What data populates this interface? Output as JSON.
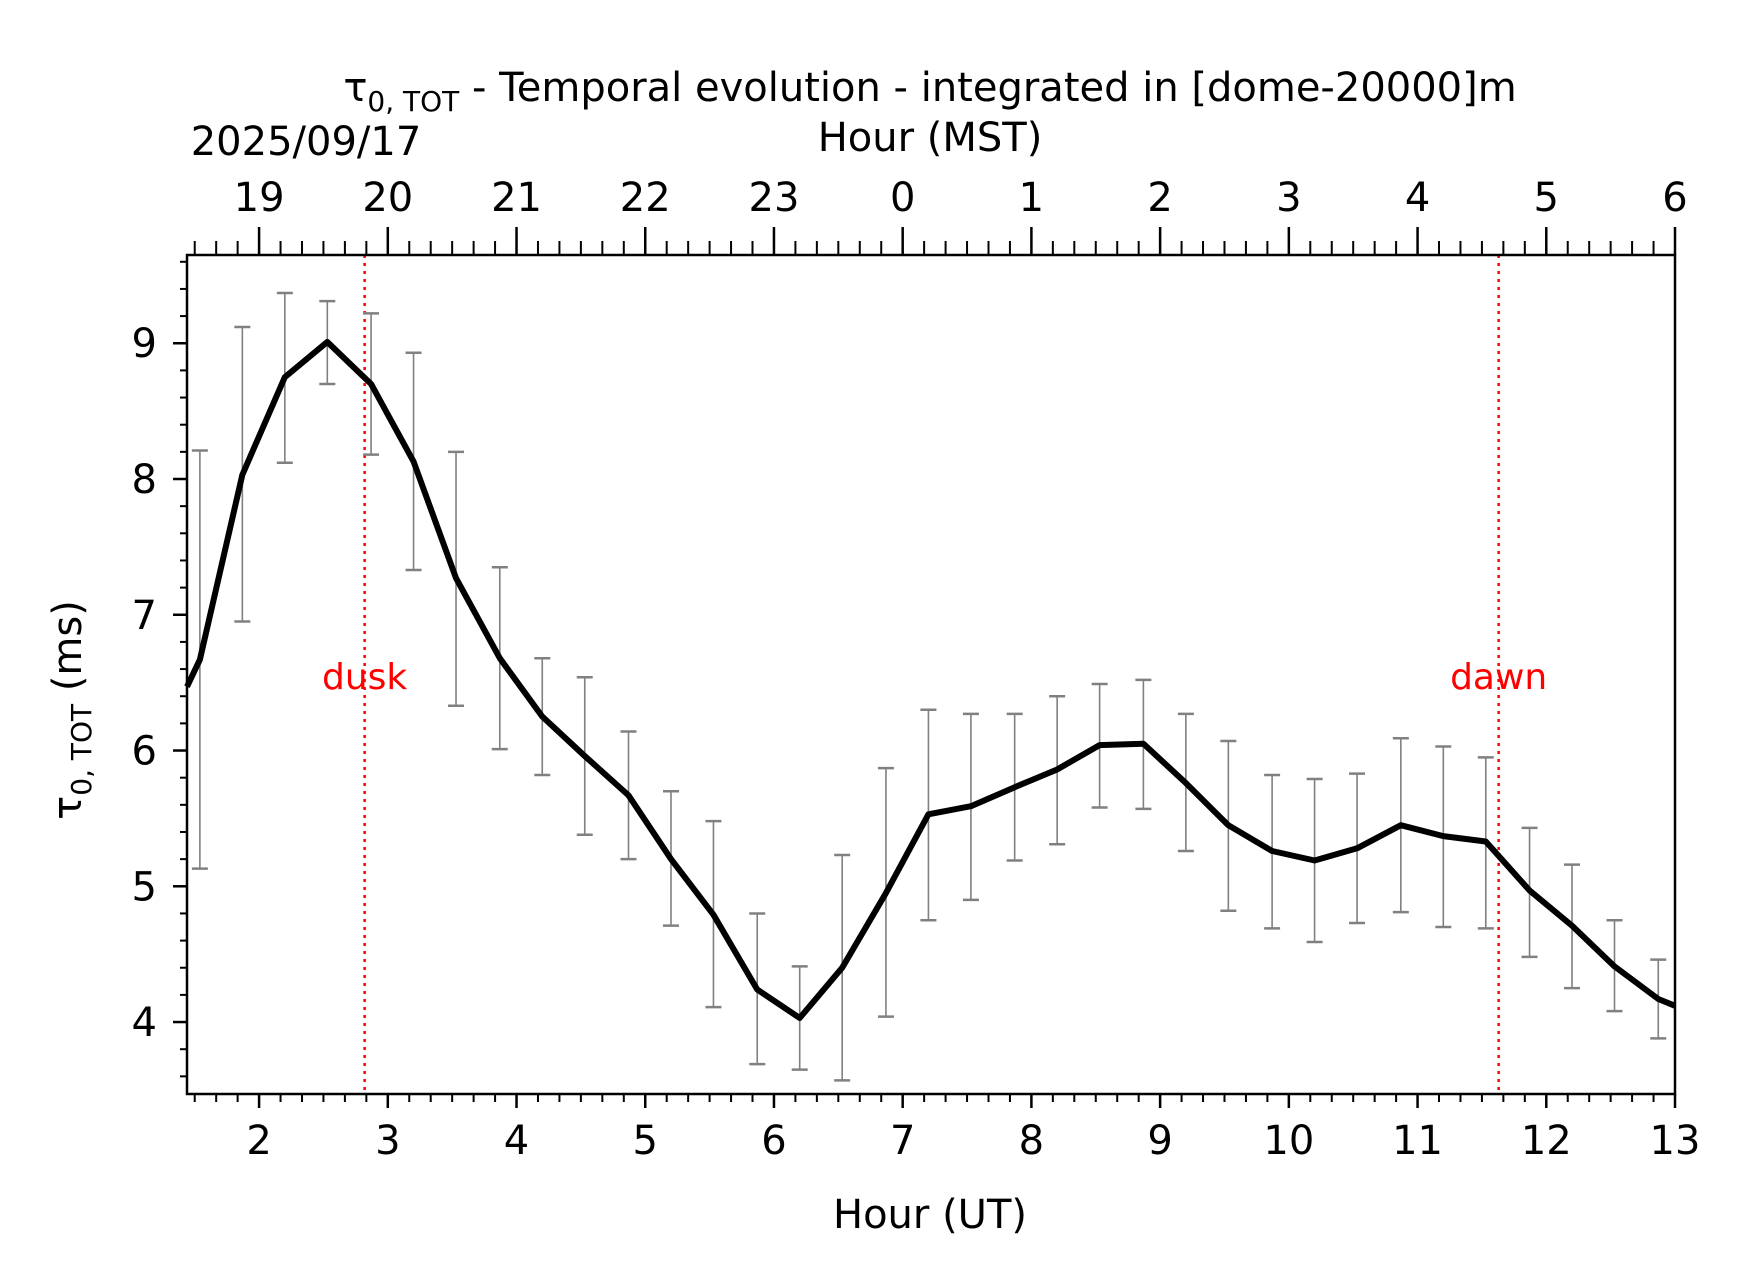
{
  "chart_data": {
    "type": "line",
    "title": {
      "symbol": "τ",
      "subscript": "0, TOT",
      "rest": " - Temporal evolution - integrated in [dome-20000]m"
    },
    "date_label": "2025/09/17",
    "xlabel": "Hour (UT)",
    "x2label": "Hour (MST)",
    "ylabel": {
      "symbol": "τ",
      "subscript": "0, TOT",
      "unit": " (ms)"
    },
    "xlim": [
      1.44,
      13.0
    ],
    "ylim": [
      3.47,
      9.65
    ],
    "x_ticks": [
      2,
      3,
      4,
      5,
      6,
      7,
      8,
      9,
      10,
      11,
      12,
      13
    ],
    "y_ticks": [
      4,
      5,
      6,
      7,
      8,
      9
    ],
    "x2_ticks": [
      {
        "ut": 2,
        "label": "19"
      },
      {
        "ut": 3,
        "label": "20"
      },
      {
        "ut": 4,
        "label": "21"
      },
      {
        "ut": 5,
        "label": "22"
      },
      {
        "ut": 6,
        "label": "23"
      },
      {
        "ut": 7,
        "label": "0"
      },
      {
        "ut": 8,
        "label": "1"
      },
      {
        "ut": 9,
        "label": "2"
      },
      {
        "ut": 10,
        "label": "3"
      },
      {
        "ut": 11,
        "label": "4"
      },
      {
        "ut": 12,
        "label": "5"
      },
      {
        "ut": 13,
        "label": "6"
      }
    ],
    "series": [
      {
        "color": "#000000",
        "x": [
          1.44,
          1.54,
          1.87,
          2.2,
          2.53,
          2.87,
          3.2,
          3.53,
          3.87,
          4.2,
          4.53,
          4.87,
          5.2,
          5.53,
          5.87,
          6.2,
          6.53,
          6.87,
          7.2,
          7.53,
          7.87,
          8.2,
          8.53,
          8.87,
          9.2,
          9.53,
          9.87,
          10.2,
          10.53,
          10.87,
          11.2,
          11.53,
          11.87,
          12.2,
          12.53,
          12.87,
          13.0
        ],
        "y": [
          6.47,
          6.67,
          8.03,
          8.75,
          9.01,
          8.7,
          8.13,
          7.27,
          6.68,
          6.25,
          5.96,
          5.67,
          5.2,
          4.79,
          4.24,
          4.03,
          4.4,
          4.95,
          5.53,
          5.59,
          5.73,
          5.86,
          6.04,
          6.05,
          5.76,
          5.45,
          5.26,
          5.19,
          5.28,
          5.45,
          5.37,
          5.33,
          4.97,
          4.71,
          4.41,
          4.17,
          4.12
        ]
      }
    ],
    "error_bars": {
      "color": "#808080",
      "x": [
        1.54,
        1.87,
        2.2,
        2.53,
        2.87,
        3.2,
        3.53,
        3.87,
        4.2,
        4.53,
        4.87,
        5.2,
        5.53,
        5.87,
        6.2,
        6.53,
        6.87,
        7.2,
        7.53,
        7.87,
        8.2,
        8.53,
        8.87,
        9.2,
        9.53,
        9.87,
        10.2,
        10.53,
        10.87,
        11.2,
        11.53,
        11.87,
        12.2,
        12.53,
        12.87
      ],
      "low": [
        5.13,
        6.95,
        8.12,
        8.7,
        8.18,
        7.33,
        6.33,
        6.01,
        5.82,
        5.38,
        5.2,
        4.71,
        4.11,
        3.69,
        3.65,
        3.57,
        4.04,
        4.75,
        4.9,
        5.19,
        5.31,
        5.58,
        5.57,
        5.26,
        4.82,
        4.69,
        4.59,
        4.73,
        4.81,
        4.7,
        4.69,
        4.48,
        4.25,
        4.08,
        3.88
      ],
      "high": [
        8.21,
        9.12,
        9.37,
        9.31,
        9.22,
        8.93,
        8.2,
        7.35,
        6.68,
        6.54,
        6.14,
        5.7,
        5.48,
        4.8,
        4.41,
        5.23,
        5.87,
        6.3,
        6.27,
        6.27,
        6.4,
        6.49,
        6.52,
        6.27,
        6.07,
        5.82,
        5.79,
        5.83,
        6.09,
        6.03,
        5.95,
        5.43,
        5.16,
        4.75,
        4.46
      ]
    },
    "markers": [
      {
        "x": 2.82,
        "label": "dusk",
        "color": "#ff0000",
        "label_y": 6.55
      },
      {
        "x": 11.63,
        "label": "dawn",
        "color": "#ff0000",
        "label_y": 6.55
      }
    ]
  }
}
